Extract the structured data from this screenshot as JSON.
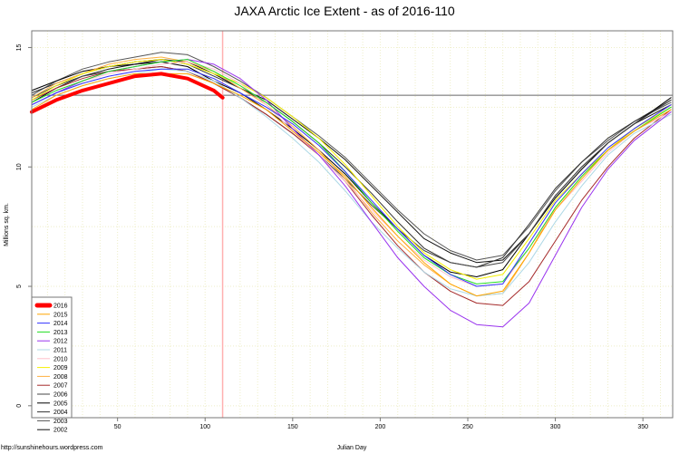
{
  "chart_data": {
    "type": "line",
    "title": "JAXA Arctic Ice Extent - as of 2016-110",
    "xlabel": "Julian Day",
    "ylabel": "Millions sq. km.",
    "source_note": "http://sunshinehours.wordpress.com",
    "xlim": [
      1,
      367
    ],
    "ylim": [
      -0.5,
      15.7
    ],
    "xticks": [
      50,
      100,
      150,
      200,
      250,
      300,
      350
    ],
    "yticks": [
      0,
      5,
      10,
      15
    ],
    "grid": true,
    "legend_position": "bottom-left",
    "reference_line_value": 13.0,
    "current_day_marker": 110,
    "x": [
      1,
      15,
      30,
      45,
      60,
      75,
      90,
      105,
      120,
      135,
      150,
      165,
      180,
      195,
      210,
      225,
      240,
      255,
      270,
      285,
      300,
      315,
      330,
      345,
      366
    ],
    "series": [
      {
        "name": "2016",
        "color": "#ff0000",
        "width": 4,
        "x": [
          1,
          15,
          30,
          45,
          60,
          75,
          90,
          105,
          110
        ],
        "values": [
          12.3,
          12.8,
          13.2,
          13.5,
          13.8,
          13.9,
          13.7,
          13.2,
          12.9
        ]
      },
      {
        "name": "2015",
        "color": "#ffa500",
        "width": 1,
        "values": [
          12.4,
          13.0,
          13.4,
          13.7,
          13.9,
          13.9,
          13.9,
          13.5,
          13.0,
          12.4,
          11.5,
          10.6,
          9.6,
          8.3,
          7.1,
          6.0,
          5.1,
          4.6,
          4.8,
          6.4,
          8.2,
          9.5,
          10.7,
          11.5,
          12.4
        ]
      },
      {
        "name": "2014",
        "color": "#3333ff",
        "width": 1,
        "values": [
          12.6,
          13.1,
          13.5,
          13.8,
          14.0,
          14.1,
          14.1,
          13.7,
          13.1,
          12.5,
          11.8,
          10.9,
          9.8,
          8.6,
          7.4,
          6.3,
          5.5,
          5.0,
          5.1,
          6.8,
          8.5,
          9.7,
          10.8,
          11.6,
          12.6
        ]
      },
      {
        "name": "2013",
        "color": "#22dd22",
        "width": 1,
        "values": [
          12.7,
          13.2,
          13.6,
          14.0,
          14.2,
          14.4,
          14.5,
          14.0,
          13.4,
          12.7,
          11.9,
          11.0,
          9.8,
          8.5,
          7.3,
          6.2,
          5.5,
          5.1,
          5.2,
          6.6,
          8.3,
          9.6,
          10.7,
          11.5,
          12.5
        ]
      },
      {
        "name": "2012",
        "color": "#9933ee",
        "width": 1,
        "values": [
          12.6,
          13.1,
          13.6,
          14.0,
          14.2,
          14.4,
          14.5,
          14.3,
          13.7,
          12.8,
          11.6,
          10.5,
          9.2,
          7.7,
          6.2,
          5.0,
          4.0,
          3.4,
          3.3,
          4.3,
          6.3,
          8.3,
          9.9,
          11.1,
          12.3
        ]
      },
      {
        "name": "2011",
        "color": "#add8e6",
        "width": 1,
        "values": [
          12.5,
          13.0,
          13.4,
          13.7,
          13.9,
          14.1,
          14.0,
          13.6,
          12.9,
          12.1,
          11.2,
          10.2,
          9.0,
          7.7,
          6.6,
          5.6,
          4.9,
          4.6,
          4.7,
          6.0,
          7.7,
          9.2,
          10.5,
          11.4,
          12.2
        ]
      },
      {
        "name": "2010",
        "color": "#ffc0cb",
        "width": 1,
        "values": [
          12.6,
          13.1,
          13.6,
          13.9,
          14.1,
          14.3,
          14.4,
          14.1,
          13.5,
          12.6,
          11.5,
          10.5,
          9.4,
          8.2,
          7.1,
          6.1,
          5.4,
          5.0,
          5.1,
          6.6,
          8.2,
          9.4,
          10.6,
          11.5,
          12.3
        ]
      },
      {
        "name": "2009",
        "color": "#f5f000",
        "width": 1,
        "values": [
          12.8,
          13.4,
          13.9,
          14.2,
          14.4,
          14.5,
          14.3,
          13.9,
          13.5,
          12.9,
          12.1,
          11.2,
          10.1,
          8.8,
          7.5,
          6.4,
          5.7,
          5.3,
          5.5,
          7.0,
          8.6,
          9.7,
          10.7,
          11.6,
          12.5
        ]
      },
      {
        "name": "2008",
        "color": "#ffb040",
        "width": 1,
        "values": [
          12.9,
          13.5,
          13.9,
          14.3,
          14.5,
          14.6,
          14.4,
          14.0,
          13.3,
          12.6,
          11.7,
          10.7,
          9.5,
          8.1,
          6.9,
          5.9,
          5.1,
          4.6,
          4.7,
          6.4,
          8.3,
          9.6,
          10.7,
          11.6,
          12.6
        ]
      },
      {
        "name": "2007",
        "color": "#a52a2a",
        "width": 1,
        "values": [
          12.8,
          13.3,
          13.7,
          14.0,
          14.1,
          14.2,
          14.0,
          13.5,
          12.9,
          12.2,
          11.4,
          10.5,
          9.4,
          8.0,
          6.7,
          5.6,
          4.8,
          4.3,
          4.2,
          5.2,
          6.9,
          8.6,
          10.0,
          11.2,
          12.4
        ]
      },
      {
        "name": "2006",
        "color": "#444444",
        "width": 1,
        "values": [
          12.9,
          13.4,
          13.8,
          14.0,
          14.1,
          14.2,
          14.0,
          13.5,
          12.9,
          12.2,
          11.4,
          10.5,
          9.5,
          8.4,
          7.4,
          6.5,
          6.0,
          5.8,
          6.0,
          7.2,
          8.8,
          10.0,
          11.0,
          11.8,
          12.8
        ]
      },
      {
        "name": "2005",
        "color": "#000000",
        "width": 1,
        "values": [
          13.2,
          13.6,
          14.0,
          14.2,
          14.3,
          14.4,
          14.2,
          13.6,
          13.1,
          12.4,
          11.6,
          10.7,
          9.7,
          8.5,
          7.4,
          6.3,
          5.6,
          5.4,
          5.7,
          7.2,
          8.7,
          9.9,
          11.0,
          11.8,
          12.9
        ]
      },
      {
        "name": "2004",
        "color": "#333333",
        "width": 1,
        "values": [
          13.1,
          13.5,
          13.9,
          14.2,
          14.4,
          14.5,
          14.3,
          13.8,
          13.3,
          12.7,
          11.9,
          11.0,
          10.0,
          8.9,
          7.7,
          6.6,
          6.0,
          5.8,
          6.2,
          7.6,
          9.1,
          10.2,
          11.2,
          11.9,
          12.8
        ]
      },
      {
        "name": "2003",
        "color": "#555555",
        "width": 1,
        "values": [
          13.0,
          13.6,
          14.1,
          14.4,
          14.6,
          14.8,
          14.7,
          14.2,
          13.6,
          12.9,
          12.1,
          11.3,
          10.4,
          9.3,
          8.2,
          7.2,
          6.5,
          6.1,
          6.3,
          7.5,
          9.0,
          10.2,
          11.1,
          11.9,
          12.7
        ]
      },
      {
        "name": "2002",
        "color": "#111111",
        "width": 1,
        "values": [
          12.7,
          13.3,
          13.8,
          14.1,
          14.3,
          14.5,
          14.4,
          13.9,
          13.3,
          12.8,
          12.0,
          11.2,
          10.3,
          9.2,
          8.1,
          7.0,
          6.4,
          6.0,
          6.1,
          7.2,
          8.8,
          10.0,
          11.0,
          11.8,
          12.6
        ]
      }
    ]
  }
}
